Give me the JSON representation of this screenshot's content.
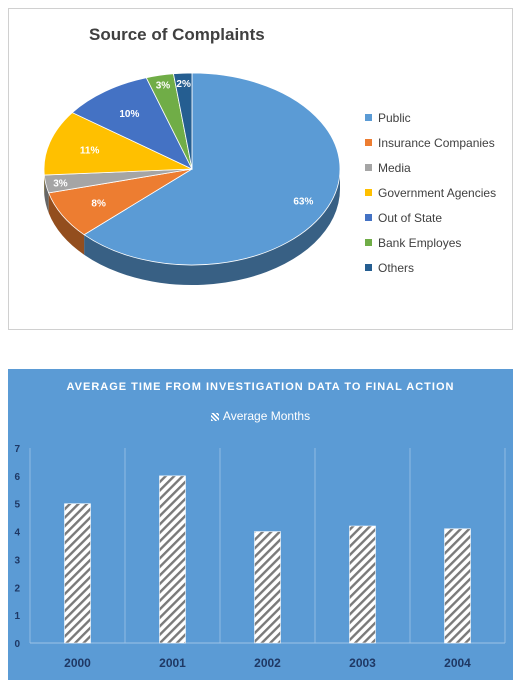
{
  "chart_data": [
    {
      "type": "pie",
      "title": "Source of Complaints",
      "categories": [
        "Public",
        "Insurance Companies",
        "Media",
        "Government Agencies",
        "Out of State",
        "Bank Employes",
        "Others"
      ],
      "values": [
        63,
        8,
        3,
        11,
        10,
        3,
        2
      ],
      "labels": [
        "63%",
        "8%",
        "3%",
        "11%",
        "10%",
        "3%",
        "2%"
      ],
      "colors": [
        "#5b9bd5",
        "#ed7d31",
        "#a5a5a5",
        "#ffc000",
        "#4472c4",
        "#70ad47",
        "#255e91"
      ],
      "legend_position": "right",
      "style": "3d"
    },
    {
      "type": "bar",
      "title": "AVERAGE TIME FROM INVESTIGATION DATA TO FINAL ACTION",
      "categories": [
        "2000",
        "2001",
        "2002",
        "2003",
        "2004"
      ],
      "series": [
        {
          "name": "Average Months",
          "values": [
            5,
            6,
            4,
            4.2,
            4.1
          ]
        }
      ],
      "ylim": [
        0,
        7
      ],
      "yticks": [
        "0",
        "1",
        "2",
        "3",
        "4",
        "5",
        "6",
        "7"
      ],
      "legend_position": "top",
      "grid": true,
      "background": "#5b9bd5",
      "bar_pattern": "diagonal-hatch"
    }
  ]
}
